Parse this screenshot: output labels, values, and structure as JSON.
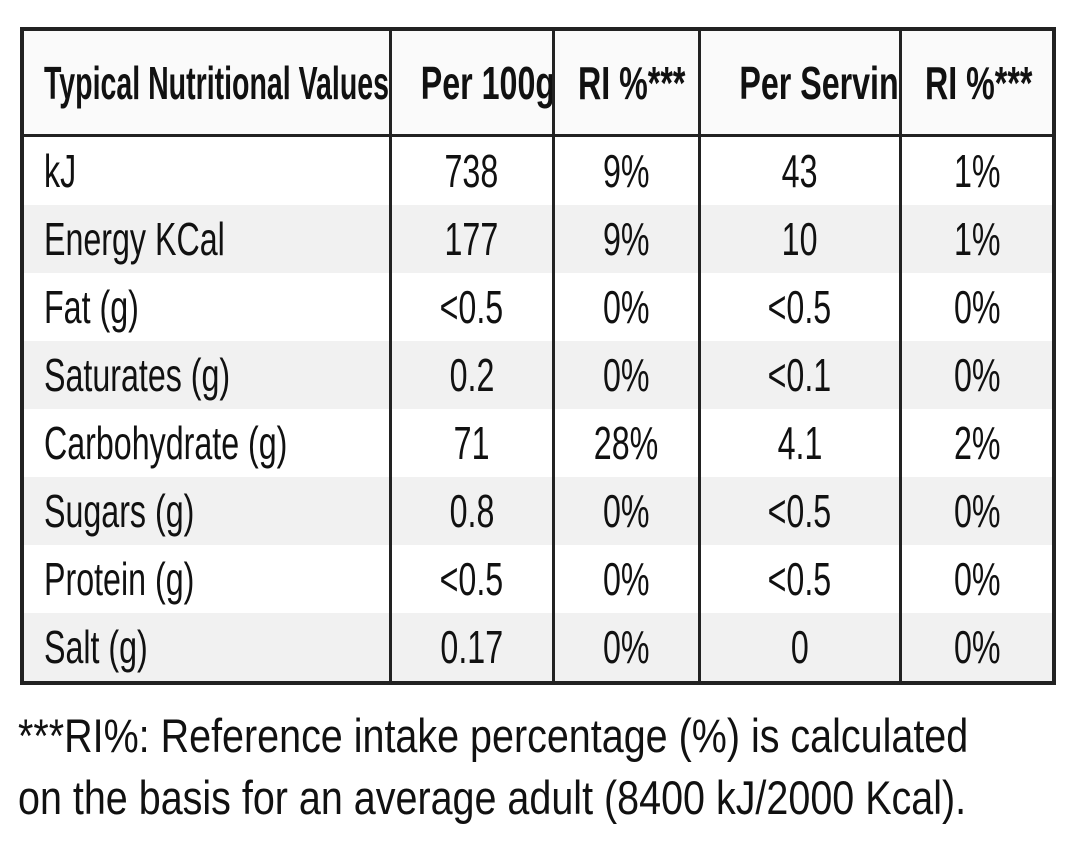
{
  "table": {
    "header": [
      "Typical Nutritional Values",
      "Per 100g",
      "RI %***",
      "Per Serving",
      "RI %***"
    ],
    "rows": [
      [
        "kJ",
        "738",
        "9%",
        "43",
        "1%"
      ],
      [
        "Energy KCal",
        "177",
        "9%",
        "10",
        "1%"
      ],
      [
        "Fat (g)",
        "<0.5",
        "0%",
        "<0.5",
        "0%"
      ],
      [
        "Saturates (g)",
        "0.2",
        "0%",
        "<0.1",
        "0%"
      ],
      [
        "Carbohydrate (g)",
        "71",
        "28%",
        "4.1",
        "2%"
      ],
      [
        "Sugars (g)",
        "0.8",
        "0%",
        "<0.5",
        "0%"
      ],
      [
        "Protein (g)",
        "<0.5",
        "0%",
        "<0.5",
        "0%"
      ],
      [
        "Salt (g)",
        "0.17",
        "0%",
        "0",
        "0%"
      ]
    ]
  },
  "footnote": [
    "***RI%: Reference intake percentage (%) is calculated",
    "on the basis for an average adult (8400 kJ/2000 Kcal)."
  ]
}
